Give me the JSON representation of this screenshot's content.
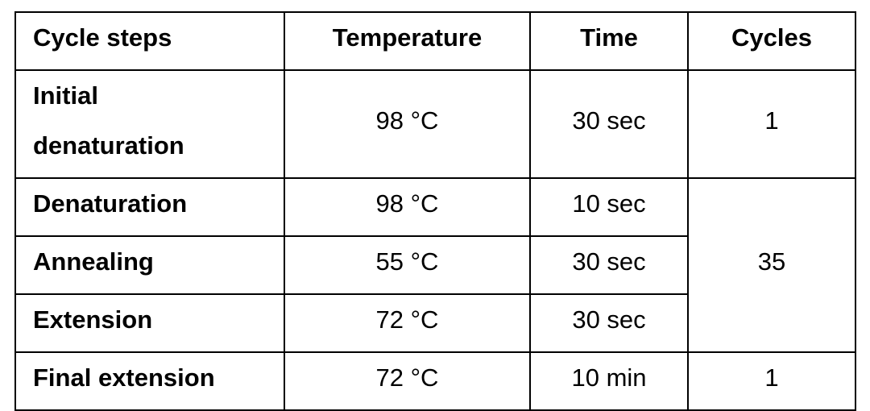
{
  "table": {
    "header": [
      "Cycle steps",
      "Temperature",
      "Time",
      "Cycles"
    ],
    "rows": [
      [
        "Initial denaturation",
        "98 °C",
        "30 sec",
        "1"
      ],
      [
        "Denaturation",
        "98 °C",
        "10 sec",
        "35"
      ],
      [
        "Annealing",
        "55 °C",
        "30 sec"
      ],
      [
        "Extension",
        "72 °C",
        "30 sec"
      ],
      [
        "Final extension",
        "72 °C",
        "10 min",
        "1"
      ]
    ]
  }
}
